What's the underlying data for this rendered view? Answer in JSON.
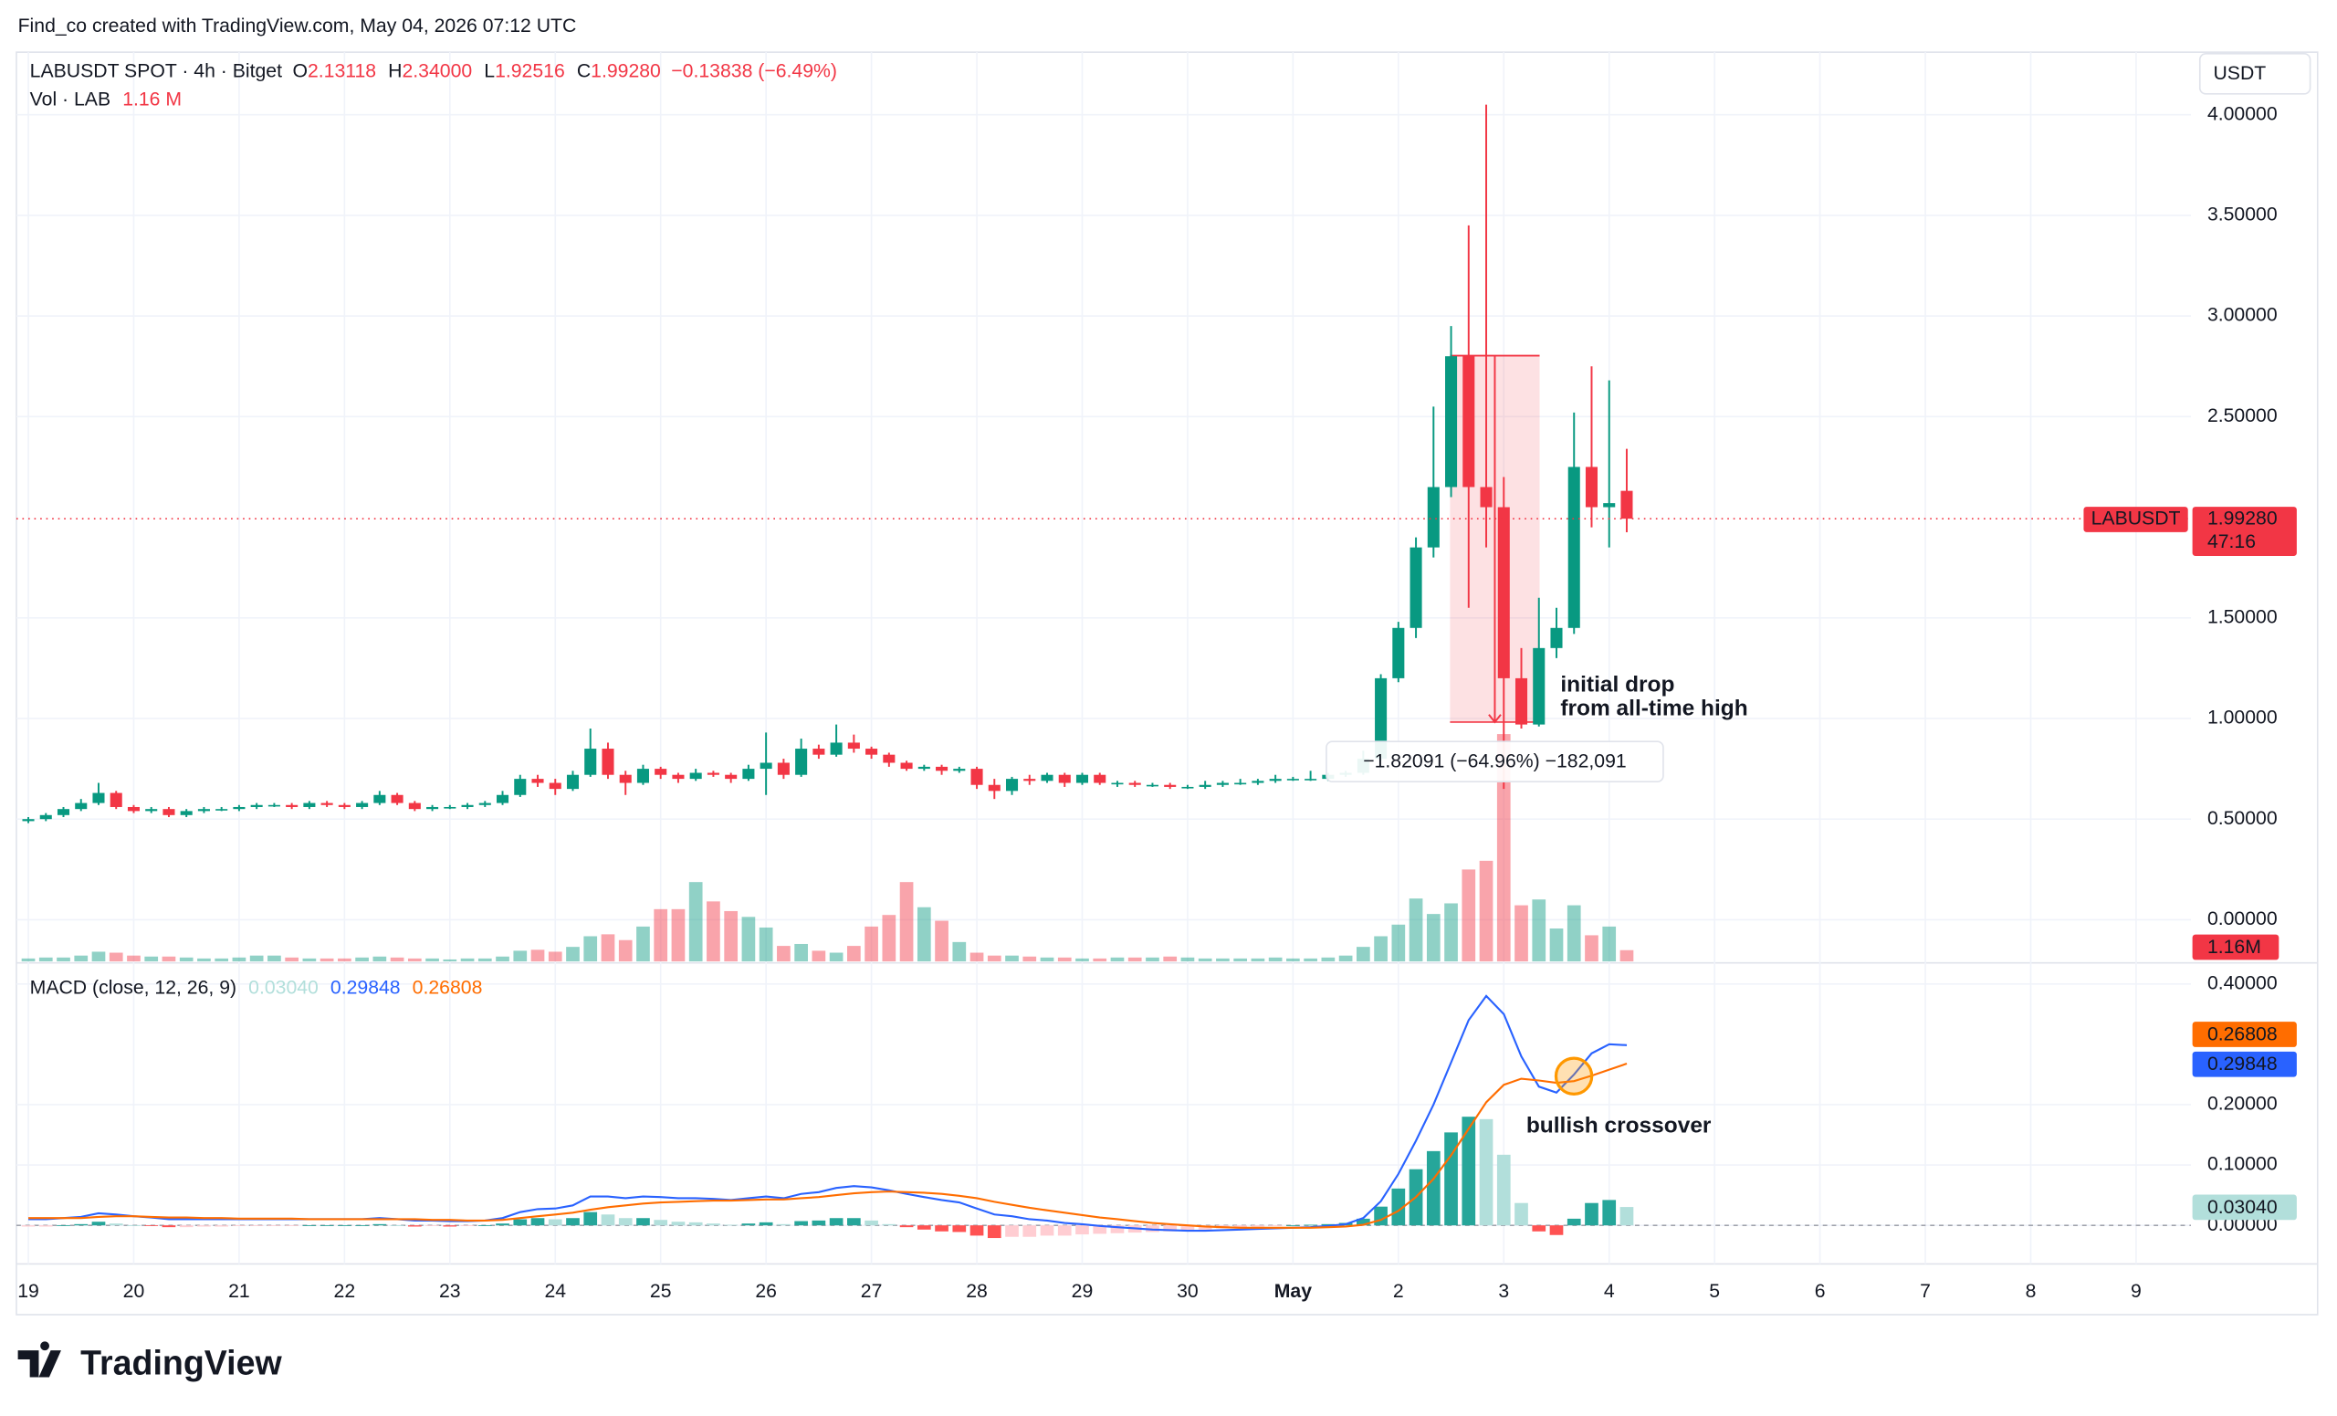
{
  "header": {
    "credit": "Find_co created with TradingView.com, May 04, 2026 07:12 UTC",
    "logo": "TradingView"
  },
  "chart_data": [
    {
      "type": "candlestick",
      "title": "LABUSDT SPOT · 4h · Bitget",
      "legend": [
        {
          "key": "O",
          "value": "2.13118"
        },
        {
          "key": "H",
          "value": "2.34000"
        },
        {
          "key": "L",
          "value": "1.92516"
        },
        {
          "key": "C",
          "value": "1.99280"
        }
      ],
      "change": "−0.13838 (−6.49%)",
      "currency": "USDT",
      "up_color": "#089981",
      "down_color": "#f23645",
      "grid": true,
      "candles": [
        [
          0.49,
          0.51,
          0.48,
          0.5
        ],
        [
          0.5,
          0.53,
          0.49,
          0.52
        ],
        [
          0.52,
          0.56,
          0.51,
          0.55
        ],
        [
          0.55,
          0.6,
          0.54,
          0.58
        ],
        [
          0.58,
          0.68,
          0.57,
          0.63
        ],
        [
          0.63,
          0.64,
          0.55,
          0.56
        ],
        [
          0.56,
          0.57,
          0.53,
          0.54
        ],
        [
          0.54,
          0.56,
          0.53,
          0.55
        ],
        [
          0.55,
          0.56,
          0.51,
          0.52
        ],
        [
          0.52,
          0.55,
          0.51,
          0.54
        ],
        [
          0.54,
          0.56,
          0.53,
          0.55
        ],
        [
          0.55,
          0.56,
          0.54,
          0.55
        ],
        [
          0.55,
          0.57,
          0.54,
          0.56
        ],
        [
          0.56,
          0.58,
          0.55,
          0.57
        ],
        [
          0.57,
          0.58,
          0.56,
          0.57
        ],
        [
          0.57,
          0.58,
          0.55,
          0.56
        ],
        [
          0.56,
          0.59,
          0.55,
          0.58
        ],
        [
          0.58,
          0.59,
          0.56,
          0.57
        ],
        [
          0.57,
          0.58,
          0.55,
          0.56
        ],
        [
          0.56,
          0.59,
          0.55,
          0.58
        ],
        [
          0.58,
          0.64,
          0.57,
          0.62
        ],
        [
          0.62,
          0.63,
          0.57,
          0.58
        ],
        [
          0.58,
          0.59,
          0.54,
          0.55
        ],
        [
          0.55,
          0.57,
          0.54,
          0.56
        ],
        [
          0.56,
          0.57,
          0.55,
          0.56
        ],
        [
          0.56,
          0.58,
          0.55,
          0.57
        ],
        [
          0.57,
          0.59,
          0.56,
          0.58
        ],
        [
          0.58,
          0.64,
          0.57,
          0.62
        ],
        [
          0.62,
          0.72,
          0.61,
          0.7
        ],
        [
          0.7,
          0.72,
          0.66,
          0.68
        ],
        [
          0.68,
          0.7,
          0.62,
          0.65
        ],
        [
          0.65,
          0.74,
          0.64,
          0.72
        ],
        [
          0.72,
          0.95,
          0.71,
          0.85
        ],
        [
          0.85,
          0.88,
          0.7,
          0.72
        ],
        [
          0.72,
          0.74,
          0.62,
          0.68
        ],
        [
          0.68,
          0.77,
          0.67,
          0.75
        ],
        [
          0.75,
          0.76,
          0.7,
          0.72
        ],
        [
          0.72,
          0.73,
          0.68,
          0.7
        ],
        [
          0.7,
          0.75,
          0.69,
          0.73
        ],
        [
          0.73,
          0.74,
          0.71,
          0.72
        ],
        [
          0.72,
          0.73,
          0.68,
          0.7
        ],
        [
          0.7,
          0.77,
          0.69,
          0.75
        ],
        [
          0.75,
          0.93,
          0.62,
          0.78
        ],
        [
          0.78,
          0.8,
          0.7,
          0.72
        ],
        [
          0.72,
          0.9,
          0.71,
          0.85
        ],
        [
          0.85,
          0.87,
          0.8,
          0.82
        ],
        [
          0.82,
          0.97,
          0.81,
          0.88
        ],
        [
          0.88,
          0.92,
          0.83,
          0.85
        ],
        [
          0.85,
          0.86,
          0.8,
          0.82
        ],
        [
          0.82,
          0.83,
          0.76,
          0.78
        ],
        [
          0.78,
          0.79,
          0.74,
          0.75
        ],
        [
          0.75,
          0.77,
          0.74,
          0.76
        ],
        [
          0.76,
          0.77,
          0.72,
          0.74
        ],
        [
          0.74,
          0.76,
          0.73,
          0.75
        ],
        [
          0.75,
          0.76,
          0.65,
          0.67
        ],
        [
          0.67,
          0.7,
          0.6,
          0.64
        ],
        [
          0.64,
          0.71,
          0.62,
          0.7
        ],
        [
          0.7,
          0.72,
          0.67,
          0.69
        ],
        [
          0.69,
          0.73,
          0.68,
          0.72
        ],
        [
          0.72,
          0.73,
          0.66,
          0.68
        ],
        [
          0.68,
          0.73,
          0.67,
          0.72
        ],
        [
          0.72,
          0.73,
          0.67,
          0.68
        ],
        [
          0.68,
          0.69,
          0.66,
          0.68
        ],
        [
          0.68,
          0.69,
          0.66,
          0.67
        ],
        [
          0.67,
          0.68,
          0.66,
          0.67
        ],
        [
          0.67,
          0.68,
          0.65,
          0.66
        ],
        [
          0.66,
          0.67,
          0.65,
          0.66
        ],
        [
          0.66,
          0.69,
          0.65,
          0.67
        ],
        [
          0.67,
          0.69,
          0.66,
          0.68
        ],
        [
          0.68,
          0.7,
          0.67,
          0.68
        ],
        [
          0.68,
          0.7,
          0.67,
          0.69
        ],
        [
          0.69,
          0.72,
          0.68,
          0.7
        ],
        [
          0.7,
          0.71,
          0.69,
          0.7
        ],
        [
          0.7,
          0.74,
          0.69,
          0.7
        ],
        [
          0.7,
          0.73,
          0.69,
          0.72
        ],
        [
          0.72,
          0.74,
          0.71,
          0.73
        ],
        [
          0.73,
          0.84,
          0.72,
          0.8
        ],
        [
          0.8,
          1.22,
          0.79,
          1.2
        ],
        [
          1.2,
          1.48,
          1.18,
          1.45
        ],
        [
          1.45,
          1.9,
          1.4,
          1.85
        ],
        [
          1.85,
          2.55,
          1.8,
          2.15
        ],
        [
          2.15,
          2.95,
          2.1,
          2.8
        ],
        [
          2.8,
          3.45,
          1.55,
          2.15
        ],
        [
          2.15,
          4.05,
          1.85,
          2.05
        ],
        [
          2.05,
          2.2,
          0.65,
          1.2
        ],
        [
          1.2,
          1.35,
          0.95,
          0.97
        ],
        [
          0.97,
          1.6,
          0.96,
          1.35
        ],
        [
          1.35,
          1.55,
          1.3,
          1.45
        ],
        [
          1.45,
          2.52,
          1.42,
          2.25
        ],
        [
          2.25,
          2.75,
          1.95,
          2.05
        ],
        [
          2.05,
          2.68,
          1.85,
          2.07
        ],
        [
          2.13118,
          2.34,
          1.92516,
          1.9928
        ]
      ],
      "ylim": [
        -0.207,
        4.311
      ],
      "yticks": [
        {
          "value": 0,
          "label": "0.00000"
        },
        {
          "value": 0.5,
          "label": "0.50000"
        },
        {
          "value": 1,
          "label": "1.00000"
        },
        {
          "value": 1.5,
          "label": "1.50000"
        },
        {
          "value": 2.5,
          "label": "2.50000"
        },
        {
          "value": 3,
          "label": "3.00000"
        },
        {
          "value": 3.5,
          "label": "3.50000"
        },
        {
          "value": 4,
          "label": "4.00000"
        }
      ],
      "xlim": [
        -0.113,
        20.52
      ],
      "xticks": [
        {
          "value": 0,
          "label": "19"
        },
        {
          "value": 1,
          "label": "20"
        },
        {
          "value": 2,
          "label": "21"
        },
        {
          "value": 3,
          "label": "22"
        },
        {
          "value": 4,
          "label": "23"
        },
        {
          "value": 5,
          "label": "24"
        },
        {
          "value": 6,
          "label": "25"
        },
        {
          "value": 7,
          "label": "26"
        },
        {
          "value": 8,
          "label": "27"
        },
        {
          "value": 9,
          "label": "28"
        },
        {
          "value": 10,
          "label": "29"
        },
        {
          "value": 11,
          "label": "30"
        },
        {
          "value": 12,
          "label": "May"
        },
        {
          "value": 13,
          "label": "2"
        },
        {
          "value": 14,
          "label": "3"
        },
        {
          "value": 15,
          "label": "4"
        },
        {
          "value": 16,
          "label": "5"
        },
        {
          "value": 17,
          "label": "6"
        },
        {
          "value": 18,
          "label": "7"
        },
        {
          "value": 19,
          "label": "8"
        },
        {
          "value": 20,
          "label": "9"
        }
      ],
      "last_price": {
        "symbol": "LABUSDT",
        "value": 1.9928,
        "label": "1.99280",
        "countdown": "47:16"
      },
      "volume": {
        "name": "Vol · LAB",
        "legend_label": "1.16 M",
        "axis_label": "1.16M",
        "ylim": [
          0,
          94
        ],
        "values": [
          0.3,
          0.4,
          0.4,
          0.6,
          1.0,
          0.9,
          0.6,
          0.5,
          0.5,
          0.4,
          0.3,
          0.3,
          0.4,
          0.6,
          0.6,
          0.4,
          0.3,
          0.3,
          0.3,
          0.4,
          0.5,
          0.4,
          0.3,
          0.3,
          0.2,
          0.3,
          0.3,
          0.5,
          1.1,
          1.2,
          1.0,
          1.5,
          2.6,
          2.8,
          2.2,
          3.6,
          5.4,
          5.4,
          8.2,
          6.2,
          5.2,
          4.6,
          3.5,
          1.6,
          1.8,
          1.1,
          0.9,
          1.6,
          3.6,
          4.8,
          8.2,
          5.6,
          4.2,
          2.0,
          0.9,
          0.6,
          0.6,
          0.5,
          0.4,
          0.4,
          0.3,
          0.3,
          0.4,
          0.4,
          0.4,
          0.5,
          0.4,
          0.3,
          0.3,
          0.3,
          0.3,
          0.4,
          0.3,
          0.3,
          0.4,
          0.6,
          1.5,
          2.6,
          3.8,
          6.5,
          4.9,
          6.0,
          9.5,
          10.4,
          23.5,
          5.8,
          6.4,
          3.4,
          5.8,
          2.7,
          3.6,
          1.16
        ]
      },
      "measure": {
        "from": 2.803,
        "to": 0.98209,
        "xrange": [
          13.49,
          14.34
        ],
        "label": "−1.82091 (−64.96%) −182,091"
      },
      "annotation": [
        "initial drop",
        "from all-time high"
      ]
    },
    {
      "type": "macd",
      "title": "MACD (close, 12, 26, 9)",
      "ylim": [
        -0.064,
        0.43
      ],
      "yticks": [
        {
          "value": 0,
          "label": "0.00000"
        },
        {
          "value": 0.1,
          "label": "0.10000"
        },
        {
          "value": 0.2,
          "label": "0.20000"
        },
        {
          "value": 0.4,
          "label": "0.40000"
        }
      ],
      "series": [
        {
          "kind": "histogram",
          "color": "#b2dfdb",
          "colors": [
            "#26a69a",
            "#b2dfdb",
            "#ffcdd2",
            "#ff5252"
          ],
          "last_label": "0.03040",
          "values": [
            -0.002,
            -0.002,
            0,
            0.002,
            0.006,
            0.003,
            0,
            -0.001,
            -0.003,
            -0.003,
            -0.002,
            -0.002,
            -0.001,
            -0.001,
            -0.001,
            -0.001,
            0,
            0,
            0,
            0,
            0.002,
            0,
            -0.002,
            -0.001,
            -0.002,
            -0.001,
            0,
            0.003,
            0.01,
            0.012,
            0.01,
            0.012,
            0.022,
            0.018,
            0.012,
            0.012,
            0.009,
            0.006,
            0.005,
            0.003,
            0.001,
            0.003,
            0.005,
            0.002,
            0.007,
            0.008,
            0.012,
            0.012,
            0.008,
            0.002,
            -0.003,
            -0.007,
            -0.01,
            -0.011,
            -0.017,
            -0.021,
            -0.019,
            -0.019,
            -0.017,
            -0.017,
            -0.015,
            -0.014,
            -0.013,
            -0.012,
            -0.011,
            -0.01,
            -0.009,
            -0.007,
            -0.005,
            -0.003,
            -0.002,
            -0.001,
            0,
            0.001,
            0.002,
            0.004,
            0.011,
            0.031,
            0.061,
            0.093,
            0.123,
            0.154,
            0.18,
            0.176,
            0.117,
            0.037,
            -0.01,
            -0.016,
            0.011,
            0.037,
            0.042,
            0.0304
          ]
        },
        {
          "kind": "line",
          "color": "#2962ff",
          "last_label": "0.29848",
          "values": [
            0.01,
            0.01,
            0.012,
            0.014,
            0.02,
            0.018,
            0.015,
            0.013,
            0.01,
            0.01,
            0.01,
            0.01,
            0.01,
            0.01,
            0.01,
            0.01,
            0.01,
            0.01,
            0.01,
            0.01,
            0.012,
            0.01,
            0.008,
            0.008,
            0.007,
            0.007,
            0.008,
            0.012,
            0.022,
            0.027,
            0.028,
            0.033,
            0.048,
            0.048,
            0.045,
            0.048,
            0.047,
            0.045,
            0.045,
            0.044,
            0.042,
            0.045,
            0.048,
            0.045,
            0.052,
            0.055,
            0.062,
            0.065,
            0.063,
            0.058,
            0.052,
            0.047,
            0.042,
            0.038,
            0.028,
            0.018,
            0.015,
            0.01,
            0.008,
            0.004,
            0.002,
            -0.001,
            -0.003,
            -0.005,
            -0.007,
            -0.008,
            -0.009,
            -0.009,
            -0.008,
            -0.007,
            -0.006,
            -0.005,
            -0.004,
            -0.003,
            -0.001,
            0.002,
            0.012,
            0.04,
            0.085,
            0.14,
            0.2,
            0.27,
            0.34,
            0.38,
            0.35,
            0.28,
            0.23,
            0.22,
            0.25,
            0.285,
            0.3,
            0.29848
          ]
        },
        {
          "kind": "line",
          "color": "#ff6d00",
          "last_label": "0.26808",
          "values": [
            0.012,
            0.012,
            0.012,
            0.012,
            0.014,
            0.015,
            0.015,
            0.014,
            0.013,
            0.013,
            0.012,
            0.012,
            0.011,
            0.011,
            0.011,
            0.011,
            0.01,
            0.01,
            0.01,
            0.01,
            0.01,
            0.01,
            0.01,
            0.009,
            0.009,
            0.008,
            0.008,
            0.009,
            0.012,
            0.015,
            0.018,
            0.021,
            0.026,
            0.03,
            0.033,
            0.036,
            0.038,
            0.039,
            0.04,
            0.041,
            0.041,
            0.042,
            0.043,
            0.043,
            0.045,
            0.047,
            0.05,
            0.053,
            0.055,
            0.056,
            0.055,
            0.054,
            0.052,
            0.049,
            0.045,
            0.039,
            0.034,
            0.029,
            0.025,
            0.021,
            0.017,
            0.013,
            0.01,
            0.007,
            0.004,
            0.002,
            0,
            -0.002,
            -0.003,
            -0.004,
            -0.004,
            -0.004,
            -0.004,
            -0.004,
            -0.003,
            -0.002,
            0.001,
            0.009,
            0.024,
            0.047,
            0.077,
            0.116,
            0.16,
            0.204,
            0.233,
            0.243,
            0.24,
            0.236,
            0.239,
            0.248,
            0.258,
            0.26808
          ]
        }
      ],
      "annotation": "bullish crossover"
    }
  ]
}
